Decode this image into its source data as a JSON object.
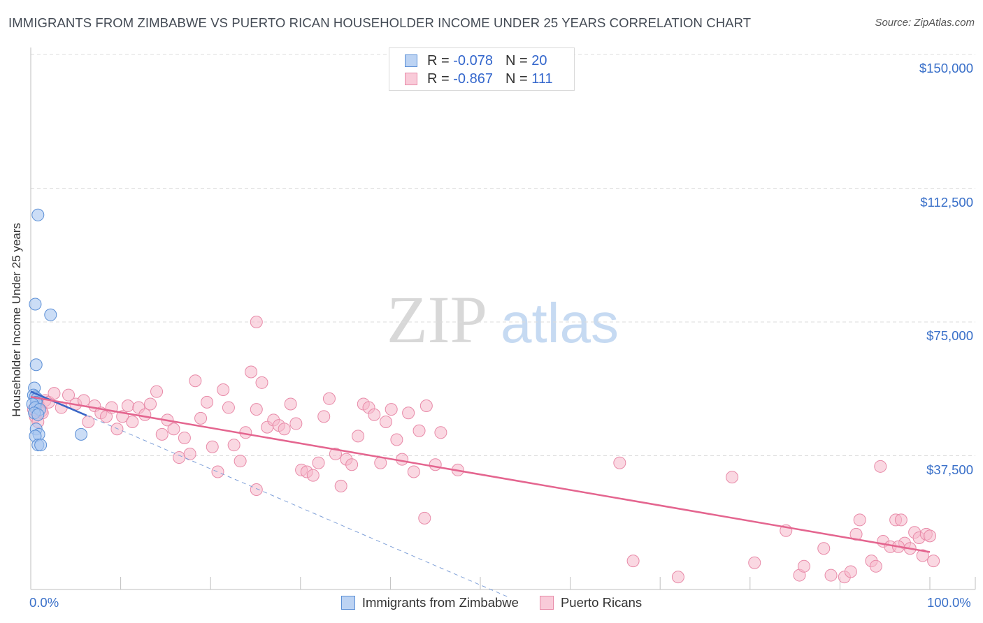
{
  "header": {
    "title": "IMMIGRANTS FROM ZIMBABWE VS PUERTO RICAN HOUSEHOLDER INCOME UNDER 25 YEARS CORRELATION CHART",
    "source": "Source: ZipAtlas.com"
  },
  "watermark": {
    "zip": "ZIP",
    "atlas": "atlas"
  },
  "colors": {
    "blue_fill": "#a9c6f0",
    "blue_stroke": "#5b8fd6",
    "blue_line": "#3a66c6",
    "pink_fill": "#f6b8cb",
    "pink_stroke": "#e88aa8",
    "pink_line": "#e4658f",
    "tick_label": "#3a70c9",
    "grid": "#dcdcdc"
  },
  "legend": {
    "rows": [
      {
        "r_label": "R =",
        "r_value": "-0.078",
        "n_label": "N =",
        "n_value": "20"
      },
      {
        "r_label": "R =",
        "r_value": "-0.867",
        "n_label": "N =",
        "n_value": "111"
      }
    ]
  },
  "chart_data": {
    "type": "scatter",
    "title": "IMMIGRANTS FROM ZIMBABWE VS PUERTO RICAN HOUSEHOLDER INCOME UNDER 25 YEARS CORRELATION CHART",
    "xlabel": "",
    "ylabel": "Householder Income Under 25 years",
    "xlim": [
      0,
      100
    ],
    "ylim": [
      0,
      155000
    ],
    "y_ticks": [
      {
        "value": 37500,
        "label": "$37,500"
      },
      {
        "value": 75000,
        "label": "$75,000"
      },
      {
        "value": 112500,
        "label": "$112,500"
      },
      {
        "value": 150000,
        "label": "$150,000"
      }
    ],
    "x_tick_labels": [
      {
        "value": 0,
        "label": "0.0%"
      },
      {
        "value": 100,
        "label": "100.0%"
      }
    ],
    "x_minor_ticks": [
      10,
      20,
      30,
      40,
      50,
      60,
      70,
      80,
      90,
      100
    ],
    "series": [
      {
        "name": "Immigrants from Zimbabwe",
        "points": [
          [
            0.8,
            105000
          ],
          [
            0.5,
            80000
          ],
          [
            2.2,
            77000
          ],
          [
            0.6,
            63000
          ],
          [
            0.4,
            56500
          ],
          [
            0.3,
            54500
          ],
          [
            0.5,
            54000
          ],
          [
            0.7,
            53500
          ],
          [
            0.6,
            52500
          ],
          [
            0.2,
            52000
          ],
          [
            0.5,
            51000
          ],
          [
            1.0,
            50500
          ],
          [
            0.4,
            49500
          ],
          [
            0.8,
            49000
          ],
          [
            0.6,
            45000
          ],
          [
            0.9,
            43500
          ],
          [
            0.5,
            43000
          ],
          [
            5.6,
            43500
          ],
          [
            0.8,
            40500
          ],
          [
            1.1,
            40500
          ]
        ],
        "trend_solid": {
          "x": [
            0,
            6.2
          ],
          "y": [
            55500,
            48800
          ]
        },
        "trend_dashed": {
          "x": [
            6.2,
            53
          ],
          "y": [
            48800,
            -2000
          ]
        }
      },
      {
        "name": "Puerto Ricans",
        "points": [
          [
            0.6,
            53500
          ],
          [
            0.9,
            51500
          ],
          [
            1.2,
            50000
          ],
          [
            1.6,
            53000
          ],
          [
            2.0,
            52500
          ],
          [
            0.5,
            48500
          ],
          [
            0.8,
            47000
          ],
          [
            1.3,
            49500
          ],
          [
            2.6,
            55000
          ],
          [
            3.4,
            51000
          ],
          [
            4.2,
            54500
          ],
          [
            5.0,
            52000
          ],
          [
            5.9,
            53000
          ],
          [
            6.4,
            47000
          ],
          [
            7.1,
            51500
          ],
          [
            7.8,
            49500
          ],
          [
            8.4,
            48500
          ],
          [
            9.0,
            51000
          ],
          [
            9.6,
            45000
          ],
          [
            10.2,
            48500
          ],
          [
            10.8,
            51500
          ],
          [
            11.3,
            47000
          ],
          [
            12.0,
            51000
          ],
          [
            12.7,
            49000
          ],
          [
            13.3,
            52000
          ],
          [
            14.0,
            55500
          ],
          [
            14.6,
            43500
          ],
          [
            15.2,
            47500
          ],
          [
            15.9,
            45000
          ],
          [
            16.5,
            37000
          ],
          [
            17.1,
            42500
          ],
          [
            17.7,
            38000
          ],
          [
            18.3,
            58500
          ],
          [
            18.9,
            48000
          ],
          [
            19.6,
            52500
          ],
          [
            20.2,
            40000
          ],
          [
            20.8,
            33000
          ],
          [
            21.4,
            56000
          ],
          [
            22.0,
            51000
          ],
          [
            22.6,
            40500
          ],
          [
            23.3,
            36000
          ],
          [
            23.9,
            44000
          ],
          [
            24.5,
            61000
          ],
          [
            25.1,
            50500
          ],
          [
            25.7,
            58000
          ],
          [
            26.3,
            45500
          ],
          [
            25.1,
            75000
          ],
          [
            25.1,
            28000
          ],
          [
            27.0,
            47500
          ],
          [
            27.6,
            46000
          ],
          [
            28.2,
            45000
          ],
          [
            28.9,
            52000
          ],
          [
            29.5,
            46500
          ],
          [
            30.1,
            33500
          ],
          [
            30.7,
            33000
          ],
          [
            31.4,
            32000
          ],
          [
            32.0,
            35500
          ],
          [
            32.6,
            48500
          ],
          [
            33.2,
            53500
          ],
          [
            33.9,
            38000
          ],
          [
            34.5,
            29000
          ],
          [
            35.1,
            36500
          ],
          [
            35.7,
            35000
          ],
          [
            36.4,
            43000
          ],
          [
            37.0,
            52000
          ],
          [
            37.6,
            51000
          ],
          [
            38.2,
            49000
          ],
          [
            38.9,
            35500
          ],
          [
            39.5,
            47000
          ],
          [
            40.1,
            50500
          ],
          [
            40.7,
            42000
          ],
          [
            41.3,
            36500
          ],
          [
            42.0,
            49500
          ],
          [
            42.6,
            33000
          ],
          [
            43.2,
            44500
          ],
          [
            44.0,
            51500
          ],
          [
            43.8,
            20000
          ],
          [
            45.0,
            35000
          ],
          [
            45.6,
            44000
          ],
          [
            47.5,
            33500
          ],
          [
            65.5,
            35500
          ],
          [
            67.0,
            8000
          ],
          [
            72.0,
            3500
          ],
          [
            78.0,
            31500
          ],
          [
            80.5,
            7500
          ],
          [
            84.0,
            16500
          ],
          [
            85.5,
            4000
          ],
          [
            86.0,
            6500
          ],
          [
            88.2,
            11500
          ],
          [
            89.0,
            4000
          ],
          [
            90.5,
            3500
          ],
          [
            91.2,
            5000
          ],
          [
            91.8,
            15500
          ],
          [
            92.2,
            19500
          ],
          [
            93.5,
            8000
          ],
          [
            94.0,
            6500
          ],
          [
            94.5,
            34500
          ],
          [
            94.8,
            13500
          ],
          [
            95.6,
            12000
          ],
          [
            96.2,
            19500
          ],
          [
            96.8,
            19500
          ],
          [
            97.2,
            13000
          ],
          [
            97.8,
            11500
          ],
          [
            98.3,
            16000
          ],
          [
            98.8,
            14500
          ],
          [
            99.2,
            9500
          ],
          [
            99.6,
            15500
          ],
          [
            100.0,
            15000
          ],
          [
            100.4,
            8000
          ],
          [
            96.5,
            12000
          ],
          [
            0.3,
            50500
          ]
        ],
        "trend_solid": {
          "x": [
            0,
            100
          ],
          "y": [
            54000,
            10500
          ]
        }
      }
    ]
  },
  "bottom_legend": [
    {
      "label": "Immigrants from Zimbabwe"
    },
    {
      "label": "Puerto Ricans"
    }
  ]
}
